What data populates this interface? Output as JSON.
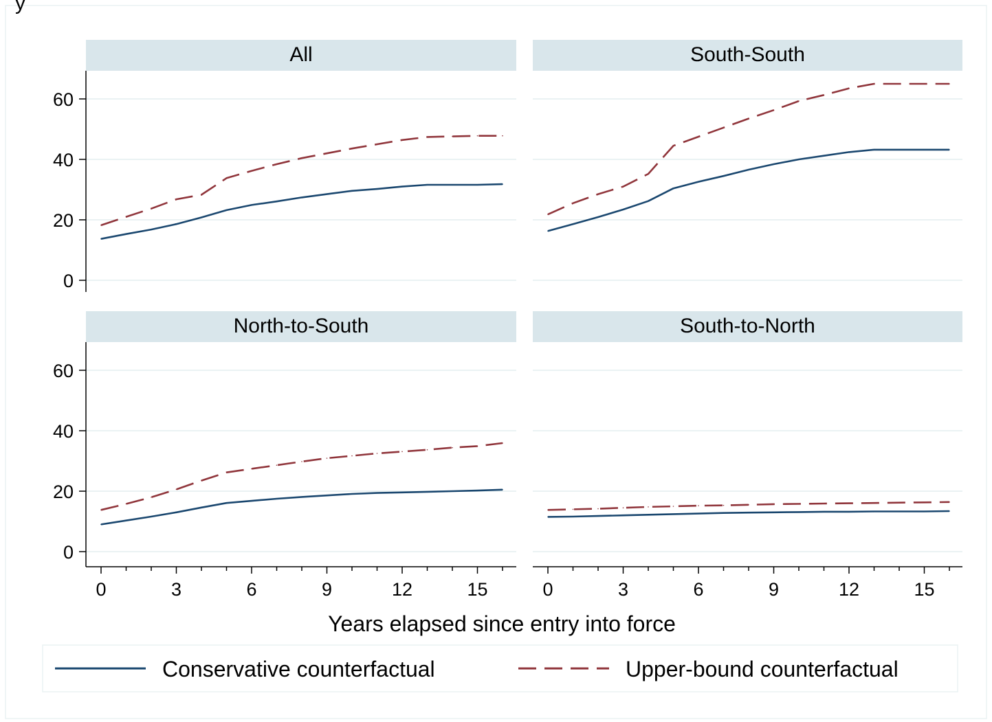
{
  "page": {
    "ylabel_fragment": "y"
  },
  "chart_data": {
    "type": "line",
    "xlabel": "Years elapsed since entry into force",
    "xlim": [
      0,
      16
    ],
    "ylim": [
      0,
      65
    ],
    "xticks": [
      0,
      3,
      6,
      9,
      12,
      15
    ],
    "yticks": [
      0,
      20,
      40,
      60
    ],
    "grid": true,
    "legend_placement": "bottom",
    "series_styles": [
      {
        "name": "Conservative counterfactual",
        "color": "#1a476f",
        "dash": "solid"
      },
      {
        "name": "Upper-bound counterfactual",
        "color": "#90353b",
        "dash": "long-dash"
      }
    ],
    "panels": [
      {
        "title": "All",
        "x": [
          0,
          1,
          2,
          3,
          4,
          5,
          6,
          7,
          8,
          9,
          10,
          11,
          12,
          13,
          14,
          15,
          16
        ],
        "series": [
          {
            "name": "Conservative counterfactual",
            "values": [
              13.7,
              15.3,
              16.8,
              18.6,
              20.8,
              23.2,
              24.9,
              26.1,
              27.4,
              28.5,
              29.6,
              30.2,
              31.0,
              31.6,
              31.6,
              31.6,
              31.8
            ]
          },
          {
            "name": "Upper-bound counterfactual",
            "values": [
              18.2,
              21.0,
              23.7,
              26.8,
              28.3,
              33.8,
              36.2,
              38.4,
              40.4,
              42.0,
              43.6,
              45.0,
              46.4,
              47.4,
              47.6,
              47.8,
              47.8
            ]
          }
        ]
      },
      {
        "title": "South-South",
        "x": [
          0,
          1,
          2,
          3,
          4,
          5,
          6,
          7,
          8,
          9,
          10,
          11,
          12,
          13,
          14,
          15,
          16
        ],
        "series": [
          {
            "name": "Conservative counterfactual",
            "values": [
              16.3,
              18.6,
              20.9,
              23.4,
              26.2,
              30.4,
              32.6,
              34.5,
              36.6,
              38.4,
              40.0,
              41.2,
              42.4,
              43.2,
              43.2,
              43.2,
              43.2
            ]
          },
          {
            "name": "Upper-bound counterfactual",
            "values": [
              21.8,
              25.5,
              28.5,
              31.0,
              35.2,
              44.5,
              47.5,
              50.5,
              53.5,
              56.3,
              59.3,
              61.3,
              63.5,
              65.0,
              65.0,
              65.0,
              65.0
            ]
          }
        ]
      },
      {
        "title": "North-to-South",
        "x": [
          0,
          1,
          2,
          3,
          4,
          5,
          6,
          7,
          8,
          9,
          10,
          11,
          12,
          13,
          14,
          15,
          16
        ],
        "series": [
          {
            "name": "Conservative counterfactual",
            "values": [
              9.0,
              10.3,
              11.6,
              13.0,
              14.6,
              16.1,
              16.8,
              17.5,
              18.1,
              18.6,
              19.1,
              19.4,
              19.6,
              19.8,
              20.0,
              20.2,
              20.5
            ]
          },
          {
            "name": "Upper-bound counterfactual",
            "values": [
              13.8,
              15.8,
              18.0,
              20.6,
              23.5,
              26.2,
              27.4,
              28.6,
              29.8,
              30.9,
              31.7,
              32.5,
              33.1,
              33.7,
              34.4,
              34.9,
              35.9
            ]
          }
        ]
      },
      {
        "title": "South-to-North",
        "x": [
          0,
          1,
          2,
          3,
          4,
          5,
          6,
          7,
          8,
          9,
          10,
          11,
          12,
          13,
          14,
          15,
          16
        ],
        "series": [
          {
            "name": "Conservative counterfactual",
            "values": [
              11.5,
              11.6,
              11.8,
              12.0,
              12.2,
              12.4,
              12.6,
              12.8,
              12.9,
              13.0,
              13.1,
              13.2,
              13.2,
              13.3,
              13.3,
              13.3,
              13.4
            ]
          },
          {
            "name": "Upper-bound counterfactual",
            "values": [
              13.8,
              14.0,
              14.2,
              14.5,
              14.8,
              15.0,
              15.2,
              15.3,
              15.5,
              15.7,
              15.8,
              15.9,
              16.0,
              16.1,
              16.2,
              16.3,
              16.4
            ]
          }
        ]
      }
    ]
  }
}
